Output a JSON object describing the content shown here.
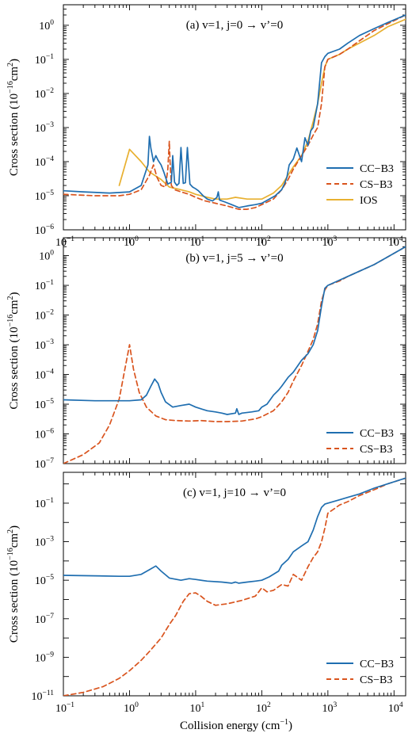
{
  "figure": {
    "xlabel": "Collision energy (cm",
    "xlabel_sup": "−1",
    "xlabel_close": ")"
  },
  "colors": {
    "CC-B3": "#1f6eb0",
    "CS-B3": "#d9541e",
    "IOS": "#e8b030"
  },
  "chart_data": [
    {
      "type": "line",
      "panel_label": "(a) v=1, j=0 → v’=0",
      "ylabel_prefix": "Cross section (10",
      "ylabel_exp": "−16",
      "ylabel_unit": "cm",
      "ylabel_unit_exp": "2",
      "ylabel_close": ")",
      "xlim": [
        0.1,
        15000
      ],
      "ylim": [
        1e-06,
        4
      ],
      "log_x": true,
      "log_y": true,
      "x_ticks": [
        0.1,
        1,
        10,
        100,
        1000,
        10000
      ],
      "x_tick_labels": [
        "10",
        "10",
        "10",
        "10",
        "10",
        "10"
      ],
      "x_tick_exps": [
        "−1",
        "0",
        "1",
        "2",
        "3",
        "4"
      ],
      "y_ticks": [
        1e-06,
        1e-05,
        0.0001,
        0.001,
        0.01,
        0.1,
        1
      ],
      "y_tick_labels": [
        "10",
        "10",
        "10",
        "10",
        "10",
        "10",
        "10"
      ],
      "y_tick_exps": [
        "−6",
        "−5",
        "−4",
        "−3",
        "−2",
        "−1",
        "0"
      ],
      "legend": {
        "position": "lower-right",
        "entries": [
          "CC−B3",
          "CS−B3",
          "IOS"
        ]
      },
      "series": [
        {
          "name": "CC−B3",
          "color": "#1f6eb0",
          "dash": "solid",
          "x": [
            0.1,
            0.2,
            0.5,
            1.0,
            1.5,
            1.9,
            2.0,
            2.1,
            2.3,
            2.5,
            2.7,
            3.0,
            3.3,
            3.8,
            4.3,
            4.5,
            4.8,
            5.2,
            5.6,
            6.0,
            6.5,
            7.0,
            7.5,
            8.2,
            9.0,
            10,
            11,
            13,
            15,
            18,
            21,
            22,
            23,
            28,
            35,
            45,
            60,
            80,
            100,
            130,
            160,
            200,
            220,
            240,
            260,
            300,
            340,
            400,
            450,
            500,
            550,
            600,
            700,
            800,
            900,
            1000,
            1500,
            2000,
            3000,
            5000,
            8000,
            15000
          ],
          "y": [
            1.4e-05,
            1.3e-05,
            1.2e-05,
            1.3e-05,
            2e-05,
            8e-05,
            0.00055,
            0.00025,
            0.0001,
            0.00015,
            0.00011,
            8e-05,
            5e-05,
            2.2e-05,
            2.5e-05,
            0.00015,
            2.5e-05,
            2e-05,
            2.3e-05,
            0.00026,
            2.3e-05,
            2.4e-05,
            0.00026,
            2.2e-05,
            1.8e-05,
            1.6e-05,
            1.4e-05,
            1e-05,
            8e-06,
            7e-06,
            9e-06,
            1.3e-05,
            7.5e-06,
            6.5e-06,
            5.5e-06,
            4.5e-06,
            5e-06,
            5.5e-06,
            6e-06,
            8e-06,
            1e-05,
            1.5e-05,
            2.2e-05,
            3.5e-05,
            8e-05,
            0.00012,
            0.00025,
            0.0001,
            0.0005,
            0.0003,
            0.0008,
            0.001,
            0.005,
            0.08,
            0.12,
            0.15,
            0.2,
            0.3,
            0.5,
            0.8,
            1.2,
            2.0
          ]
        },
        {
          "name": "CS−B3",
          "color": "#d9541e",
          "dash": "6,4",
          "x": [
            0.1,
            0.3,
            0.7,
            1.0,
            1.5,
            2.0,
            2.3,
            2.6,
            3.0,
            3.5,
            3.8,
            4.0,
            4.1,
            4.3,
            4.8,
            6,
            8,
            10,
            14,
            20,
            30,
            45,
            60,
            80,
            100,
            150,
            200,
            250,
            300,
            400,
            500,
            600,
            700,
            800,
            900,
            1000,
            1500,
            2000,
            3000,
            5000,
            8000,
            15000
          ],
          "y": [
            1.1e-05,
            1e-05,
            1e-05,
            1.1e-05,
            1.5e-05,
            4e-05,
            8e-05,
            3.5e-05,
            2e-05,
            1.8e-05,
            6e-05,
            0.0004,
            0.0001,
            2e-05,
            1.5e-05,
            1.3e-05,
            1.1e-05,
            9e-06,
            7e-06,
            6e-06,
            5e-06,
            4e-06,
            4e-06,
            4.5e-06,
            5.5e-06,
            8e-06,
            1.5e-05,
            3e-05,
            6e-05,
            0.00015,
            0.0003,
            0.0006,
            0.001,
            0.005,
            0.06,
            0.1,
            0.14,
            0.2,
            0.35,
            0.7,
            1.1,
            2.0
          ]
        },
        {
          "name": "IOS",
          "color": "#e8b030",
          "dash": "solid",
          "x": [
            0.7,
            1.0,
            1.5,
            2.0,
            3.0,
            4.0,
            6,
            8,
            10,
            15,
            20,
            30,
            40,
            60,
            100,
            150,
            200,
            250,
            300,
            400,
            500,
            600,
            700,
            800,
            900,
            1000,
            1500,
            2000,
            3000,
            5000,
            8000,
            15000
          ],
          "y": [
            2e-05,
            0.00023,
            0.0001,
            5e-05,
            3e-05,
            1.8e-05,
            1.5e-05,
            1.3e-05,
            1.1e-05,
            9e-06,
            8e-06,
            8e-06,
            9e-06,
            8e-06,
            8e-06,
            1.2e-05,
            2e-05,
            4e-05,
            7e-05,
            0.00015,
            0.0004,
            0.0015,
            0.005,
            0.02,
            0.06,
            0.1,
            0.14,
            0.2,
            0.3,
            0.5,
            0.9,
            1.5
          ]
        }
      ]
    },
    {
      "type": "line",
      "panel_label": "(b) v=1, j=5 → v’=0",
      "ylabel_prefix": "Cross section (10",
      "ylabel_exp": "−16",
      "ylabel_unit": "cm",
      "ylabel_unit_exp": "2",
      "ylabel_close": ")",
      "xlim": [
        0.1,
        15000
      ],
      "ylim": [
        1e-07,
        4
      ],
      "log_x": true,
      "log_y": true,
      "x_ticks": [
        0.1,
        1,
        10,
        100,
        1000,
        10000
      ],
      "y_ticks": [
        1e-07,
        1e-06,
        1e-05,
        0.0001,
        0.001,
        0.01,
        0.1,
        1
      ],
      "y_tick_labels": [
        "10",
        "10",
        "10",
        "10",
        "10",
        "10",
        "10",
        "10"
      ],
      "y_tick_exps": [
        "−7",
        "−6",
        "−5",
        "−4",
        "−3",
        "−2",
        "−1",
        "0"
      ],
      "legend": {
        "position": "lower-right",
        "entries": [
          "CC−B3",
          "CS−B3"
        ]
      },
      "series": [
        {
          "name": "CC−B3",
          "color": "#1f6eb0",
          "dash": "solid",
          "x": [
            0.1,
            0.3,
            0.7,
            1.0,
            1.5,
            1.8,
            2.1,
            2.4,
            2.7,
            3.0,
            3.5,
            4.5,
            6,
            8,
            10,
            12,
            15,
            20,
            25,
            30,
            40,
            42,
            45,
            50,
            70,
            90,
            100,
            120,
            150,
            180,
            200,
            250,
            300,
            400,
            500,
            600,
            700,
            800,
            900,
            1000,
            1500,
            2000,
            3000,
            5000,
            8000,
            15000
          ],
          "y": [
            1.4e-05,
            1.3e-05,
            1.3e-05,
            1.3e-05,
            1.4e-05,
            2e-05,
            4e-05,
            7e-05,
            5e-05,
            2.5e-05,
            1.2e-05,
            8e-06,
            9e-06,
            1e-05,
            8e-06,
            7e-06,
            6e-06,
            5.5e-06,
            5e-06,
            4.5e-06,
            5e-06,
            7e-06,
            4.5e-06,
            5e-06,
            5.5e-06,
            6e-06,
            8e-06,
            1e-05,
            2e-05,
            3e-05,
            4e-05,
            8e-05,
            0.00012,
            0.0003,
            0.0005,
            0.001,
            0.003,
            0.02,
            0.08,
            0.1,
            0.15,
            0.2,
            0.3,
            0.5,
            0.9,
            2.0
          ]
        },
        {
          "name": "CS−B3",
          "color": "#d9541e",
          "dash": "6,4",
          "x": [
            0.1,
            0.2,
            0.35,
            0.5,
            0.7,
            0.85,
            1.0,
            1.15,
            1.4,
            1.8,
            2.5,
            3.5,
            5,
            8,
            12,
            20,
            30,
            50,
            80,
            100,
            150,
            200,
            250,
            300,
            400,
            500,
            600,
            700,
            800,
            900,
            1000,
            1500,
            2000,
            3000,
            5000,
            8000,
            15000
          ],
          "y": [
            1e-07,
            2e-07,
            5e-07,
            2e-06,
            1.5e-05,
            0.00015,
            0.001,
            0.00015,
            2.5e-05,
            8e-06,
            4e-06,
            3e-06,
            2.8e-06,
            2.7e-06,
            2.8e-06,
            2.6e-06,
            2.6e-06,
            2.7e-06,
            3.2e-06,
            3.8e-06,
            6e-06,
            1.2e-05,
            2.5e-05,
            6e-05,
            0.0002,
            0.0006,
            0.0015,
            0.005,
            0.03,
            0.07,
            0.1,
            0.14,
            0.2,
            0.3,
            0.5,
            0.9,
            2.0
          ]
        }
      ]
    },
    {
      "type": "line",
      "panel_label": "(c) v=1, j=10 → v’=0",
      "ylabel_prefix": "Cross section (10",
      "ylabel_exp": "−16",
      "ylabel_unit": "cm",
      "ylabel_unit_exp": "2",
      "ylabel_close": ")",
      "xlim": [
        0.1,
        15000
      ],
      "ylim": [
        1e-11,
        4
      ],
      "log_x": true,
      "log_y": true,
      "x_ticks": [
        0.1,
        1,
        10,
        100,
        1000,
        10000
      ],
      "x_tick_labels": [
        "10",
        "10",
        "10",
        "10",
        "10",
        "10"
      ],
      "x_tick_exps": [
        "−1",
        "0",
        "1",
        "2",
        "3",
        "4"
      ],
      "y_ticks": [
        1e-11,
        1e-09,
        1e-07,
        1e-05,
        0.001,
        0.1
      ],
      "y_tick_labels": [
        "10",
        "10",
        "10",
        "10",
        "10",
        "10"
      ],
      "y_tick_exps": [
        "−11",
        "−9",
        "−7",
        "−5",
        "−3",
        "−1"
      ],
      "legend": {
        "position": "lower-right",
        "entries": [
          "CC−B3",
          "CS−B3"
        ]
      },
      "series": [
        {
          "name": "CC−B3",
          "color": "#1f6eb0",
          "dash": "solid",
          "x": [
            0.1,
            0.3,
            0.7,
            1.0,
            1.5,
            2.0,
            2.5,
            3.0,
            4.0,
            6,
            8,
            10,
            15,
            25,
            35,
            40,
            45,
            60,
            80,
            100,
            130,
            180,
            200,
            250,
            300,
            400,
            500,
            600,
            700,
            800,
            900,
            1000,
            1500,
            2000,
            3000,
            5000,
            8000,
            15000
          ],
          "y": [
            1.8e-05,
            1.7e-05,
            1.6e-05,
            1.6e-05,
            2e-05,
            3.5e-05,
            5.5e-05,
            3e-05,
            1.3e-05,
            1e-05,
            1.2e-05,
            1.1e-05,
            9e-06,
            8e-06,
            7e-06,
            8e-06,
            7e-06,
            8e-06,
            9e-06,
            1e-05,
            1.5e-05,
            3e-05,
            6e-05,
            0.00012,
            0.0003,
            0.0006,
            0.001,
            0.004,
            0.02,
            0.06,
            0.09,
            0.1,
            0.15,
            0.2,
            0.3,
            0.6,
            1.0,
            2.0
          ]
        },
        {
          "name": "CS−B3",
          "color": "#d9541e",
          "dash": "6,4",
          "x": [
            0.1,
            0.2,
            0.4,
            0.7,
            1.0,
            1.5,
            2.0,
            3.0,
            4.0,
            5.0,
            6.5,
            8.0,
            10,
            12,
            15,
            20,
            30,
            50,
            80,
            90,
            100,
            120,
            150,
            200,
            250,
            300,
            400,
            500,
            600,
            700,
            800,
            900,
            1000,
            1500,
            2000,
            3000,
            5000,
            8000,
            15000
          ],
          "y": [
            1e-11,
            1.5e-11,
            3e-11,
            8e-11,
            2e-10,
            7e-10,
            2e-09,
            1e-08,
            5e-08,
            1.5e-07,
            8e-07,
            2e-06,
            2.2e-06,
            1.5e-06,
            8e-07,
            5e-07,
            6e-07,
            9e-07,
            1.5e-06,
            2.5e-06,
            4e-06,
            2.5e-06,
            3e-06,
            6e-06,
            5e-06,
            2e-05,
            1e-05,
            5e-05,
            0.00015,
            0.0003,
            0.001,
            0.005,
            0.03,
            0.08,
            0.12,
            0.25,
            0.5,
            1.0,
            2.0
          ]
        }
      ]
    }
  ]
}
